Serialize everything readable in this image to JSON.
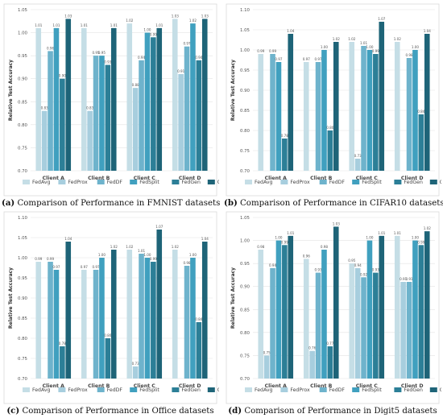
{
  "chart_data": [
    {
      "type": "bar",
      "caption_letter": "(a)",
      "caption_text": "Comparison of Performance in FMNIST datasets",
      "ylabel": "Relative Test Accuracy",
      "ylim": [
        0.7,
        1.05
      ],
      "yticks": [
        "0.70",
        "0.75",
        "0.80",
        "0.85",
        "0.90",
        "0.95",
        "1.00",
        "1.05"
      ],
      "categories": [
        "Client A",
        "Client B",
        "Client C",
        "Client D"
      ],
      "series": [
        {
          "name": "FedAvg",
          "color": "#c5dee6",
          "values": [
            1.01,
            1.01,
            1.02,
            1.03
          ]
        },
        {
          "name": "FedProx",
          "color": "#a7cede",
          "values": [
            0.83,
            0.83,
            0.88,
            0.91
          ]
        },
        {
          "name": "FedDF",
          "color": "#6eb3cc",
          "values": [
            0.96,
            0.95,
            0.94,
            0.97
          ]
        },
        {
          "name": "FedSplit",
          "color": "#40a0bf",
          "values": [
            1.01,
            0.95,
            1.0,
            1.02
          ]
        },
        {
          "name": "FedGen",
          "color": "#2c7f97",
          "values": [
            0.9,
            0.93,
            0.99,
            0.94
          ]
        },
        {
          "name": "Ours",
          "color": "#1e6478",
          "values": [
            1.03,
            1.01,
            1.01,
            1.03
          ]
        }
      ],
      "labels": [
        [
          "1.01",
          "0.83",
          "0.96",
          "1.01",
          "0.90",
          "1.03"
        ],
        [
          "1.01",
          "0.83",
          "0.95",
          "0.95",
          "0.93",
          "1.01"
        ],
        [
          "1.02",
          "0.88",
          "0.94",
          "1.00",
          "0.99",
          "1.01"
        ],
        [
          "1.03",
          "0.91",
          "0.97",
          "1.02",
          "0.94",
          "1.03"
        ]
      ],
      "legend_position": "bottom"
    },
    {
      "type": "bar",
      "caption_letter": "(b)",
      "caption_text": "Comparison of Performance in CIFAR10 datasets",
      "ylabel": "Relative Test Accuracy",
      "ylim": [
        0.7,
        1.1
      ],
      "yticks": [
        "0.70",
        "0.75",
        "0.80",
        "0.85",
        "0.90",
        "0.95",
        "1.00",
        "1.05",
        "1.10"
      ],
      "categories": [
        "Client A",
        "Client B",
        "Client C",
        "Client D"
      ],
      "series": [
        {
          "name": "FedAvg",
          "color": "#c5dee6",
          "values": [
            0.99,
            0.97,
            1.02,
            1.02
          ]
        },
        {
          "name": "FedProx",
          "color": "#a7cede",
          "values": [
            0.7,
            0.7,
            0.73,
            0.7
          ]
        },
        {
          "name": "FedDF",
          "color": "#6eb3cc",
          "values": [
            0.99,
            0.97,
            1.01,
            0.98
          ]
        },
        {
          "name": "FedSplit",
          "color": "#40a0bf",
          "values": [
            0.97,
            1.0,
            1.0,
            1.0
          ]
        },
        {
          "name": "FedGen",
          "color": "#2c7f97",
          "values": [
            0.78,
            0.8,
            0.99,
            0.84
          ]
        },
        {
          "name": "Ours",
          "color": "#1e6478",
          "values": [
            1.04,
            1.02,
            1.07,
            1.04
          ]
        }
      ],
      "labels": [
        [
          "0.99",
          "",
          "0.99",
          "0.97",
          "0.78",
          "1.04"
        ],
        [
          "0.97",
          "",
          "0.97",
          "1.00",
          "0.80",
          "1.02"
        ],
        [
          "1.02",
          "0.73",
          "1.01",
          "1.00",
          "0.99",
          "1.07"
        ],
        [
          "1.02",
          "",
          "0.98",
          "1.00",
          "0.84",
          "1.04"
        ]
      ],
      "legend_position": "bottom"
    },
    {
      "type": "bar",
      "caption_letter": "(c)",
      "caption_text": "Comparison of Performance in Office datasets",
      "ylabel": "Relative Test Accuracy",
      "ylim": [
        0.7,
        1.1
      ],
      "yticks": [
        "0.70",
        "0.75",
        "0.80",
        "0.85",
        "0.90",
        "0.95",
        "1.00",
        "1.05",
        "1.10"
      ],
      "categories": [
        "Client A",
        "Client B",
        "Client C",
        "Client D"
      ],
      "series": [
        {
          "name": "FedAvg",
          "color": "#c5dee6",
          "values": [
            0.99,
            0.97,
            1.02,
            1.02
          ]
        },
        {
          "name": "FedProx",
          "color": "#a7cede",
          "values": [
            0.7,
            0.7,
            0.73,
            0.7
          ]
        },
        {
          "name": "FedDF",
          "color": "#6eb3cc",
          "values": [
            0.99,
            0.97,
            1.01,
            0.98
          ]
        },
        {
          "name": "FedSplit",
          "color": "#40a0bf",
          "values": [
            0.97,
            1.0,
            1.0,
            1.0
          ]
        },
        {
          "name": "FedGen",
          "color": "#2c7f97",
          "values": [
            0.78,
            0.8,
            0.99,
            0.84
          ]
        },
        {
          "name": "Ours",
          "color": "#1e6478",
          "values": [
            1.04,
            1.02,
            1.07,
            1.04
          ]
        }
      ],
      "labels": [
        [
          "0.99",
          "",
          "0.99",
          "0.97",
          "0.78",
          "1.04"
        ],
        [
          "0.97",
          "",
          "0.97",
          "1.00",
          "0.80",
          "1.02"
        ],
        [
          "1.02",
          "0.73",
          "1.01",
          "1.00",
          "0.99",
          "1.07"
        ],
        [
          "1.02",
          "",
          "0.98",
          "1.00",
          "0.84",
          "1.04"
        ]
      ],
      "legend_position": "bottom"
    },
    {
      "type": "bar",
      "caption_letter": "(d)",
      "caption_text": "Comparison of Performance in Digit5 datasets",
      "ylabel": "Relative Test Accuracy",
      "ylim": [
        0.7,
        1.05
      ],
      "yticks": [
        "0.70",
        "0.75",
        "0.80",
        "0.85",
        "0.90",
        "0.95",
        "1.00",
        "1.05"
      ],
      "categories": [
        "Client A",
        "Client B",
        "Client C",
        "Client D"
      ],
      "series": [
        {
          "name": "FedAvg",
          "color": "#c5dee6",
          "values": [
            0.98,
            0.96,
            0.95,
            1.01
          ]
        },
        {
          "name": "FedProx",
          "color": "#a7cede",
          "values": [
            0.75,
            0.76,
            0.94,
            0.91
          ]
        },
        {
          "name": "FedDF",
          "color": "#6eb3cc",
          "values": [
            0.94,
            0.93,
            0.92,
            0.91
          ]
        },
        {
          "name": "FedSplit",
          "color": "#40a0bf",
          "values": [
            1.0,
            0.98,
            1.0,
            1.0
          ]
        },
        {
          "name": "FedGen",
          "color": "#2c7f97",
          "values": [
            0.99,
            0.77,
            0.93,
            0.99
          ]
        },
        {
          "name": "Ours",
          "color": "#1e6478",
          "values": [
            1.01,
            1.03,
            1.01,
            1.02
          ]
        }
      ],
      "labels": [
        [
          "0.98",
          "0.75",
          "0.94",
          "1.00",
          "0.99",
          "1.01"
        ],
        [
          "0.96",
          "0.76",
          "0.93",
          "0.98",
          "0.77",
          "1.03"
        ],
        [
          "0.95",
          "0.94",
          "0.92",
          "1.00",
          "0.93",
          "1.01"
        ],
        [
          "1.01",
          "0.91",
          "0.91",
          "1.00",
          "0.99",
          "1.02"
        ]
      ],
      "legend_position": "bottom"
    }
  ]
}
